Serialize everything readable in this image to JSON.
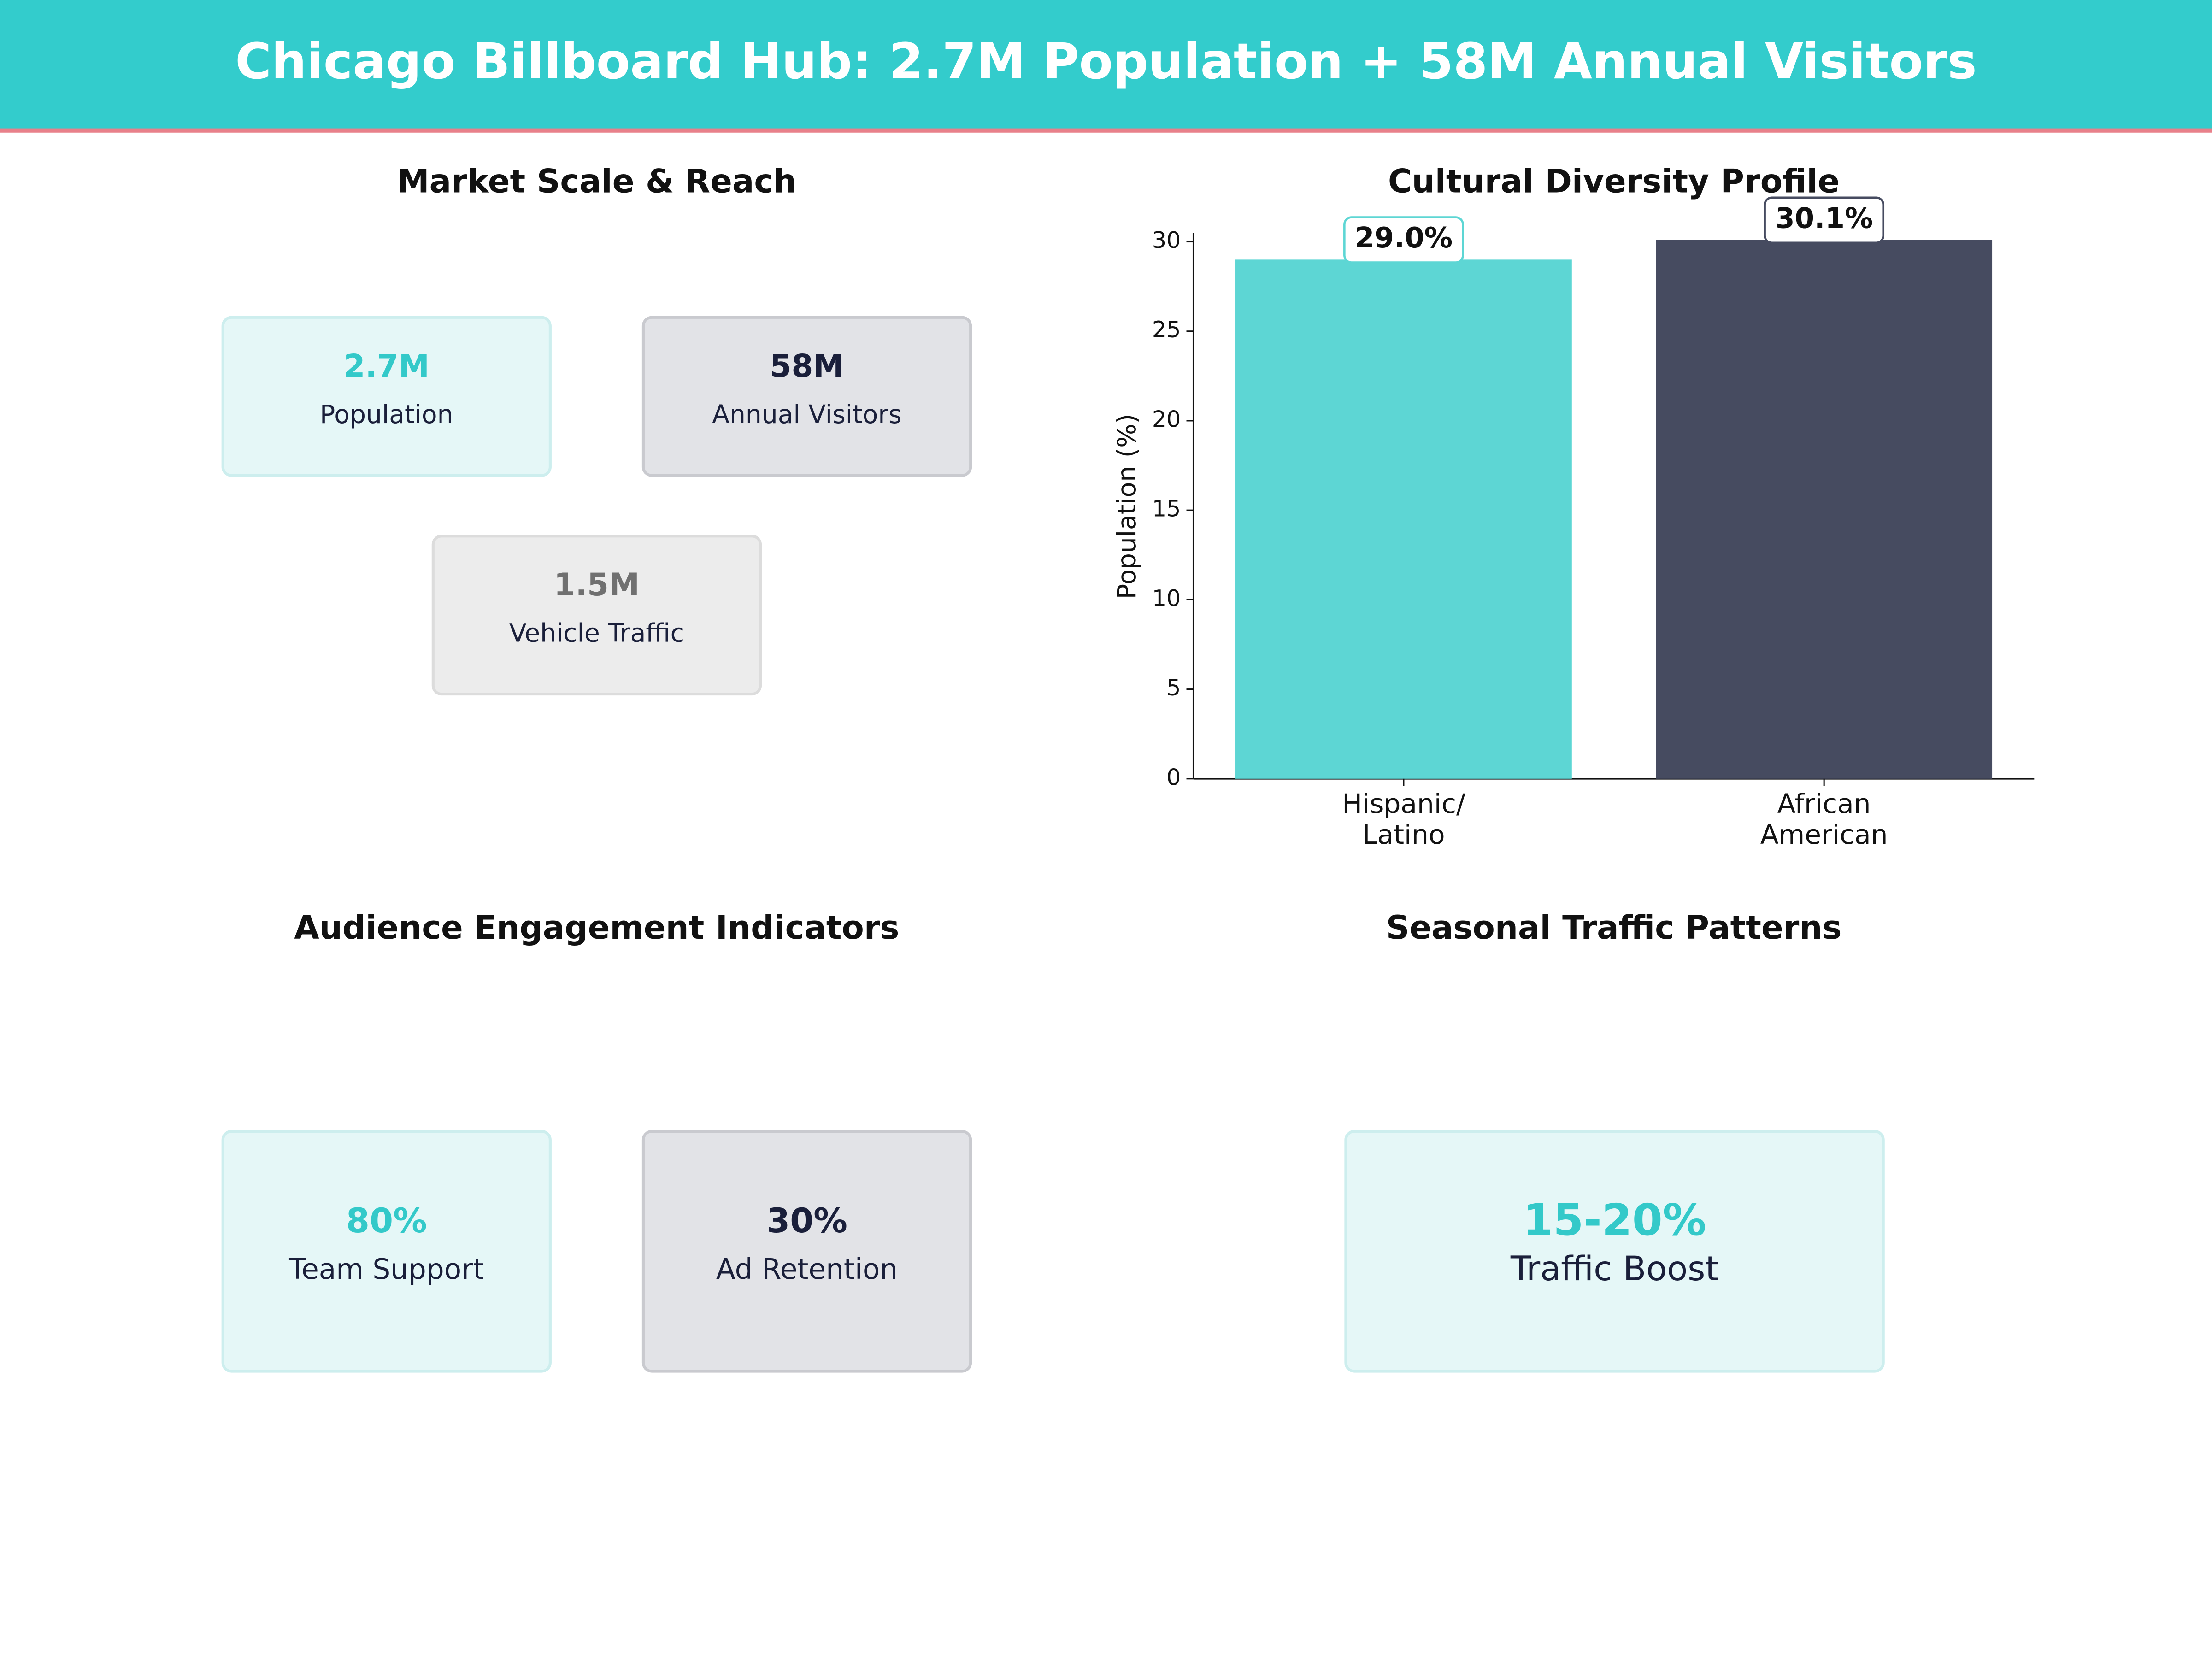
{
  "header": {
    "title": "Chicago Billboard Hub: 2.7M Population + 58M Annual Visitors"
  },
  "market": {
    "title": "Market Scale & Reach",
    "cards": [
      {
        "value": "2.7M",
        "label": "Population"
      },
      {
        "value": "58M",
        "label": "Annual Visitors"
      },
      {
        "value": "1.5M",
        "label": "Vehicle Traffic"
      }
    ]
  },
  "engagement": {
    "title": "Audience Engagement Indicators",
    "cards": [
      {
        "value": "80%",
        "label": "Team Support"
      },
      {
        "value": "30%",
        "label": "Ad Retention"
      }
    ]
  },
  "seasonal": {
    "title": "Seasonal Traffic Patterns",
    "cards": [
      {
        "value": "15-20%",
        "label": "Traffic Boost"
      }
    ]
  },
  "chart_data": {
    "type": "bar",
    "title": "Cultural Diversity Profile",
    "y_label": "Population (%)",
    "categories": [
      "Hispanic/\nLatino",
      "African\nAmerican"
    ],
    "values": [
      29.0,
      30.1
    ],
    "value_labels": [
      "29.0%",
      "30.1%"
    ],
    "colors": [
      "#5dd6d4",
      "#464b60"
    ],
    "ylim": [
      0,
      30.5
    ],
    "yticks": [
      0,
      5,
      10,
      15,
      20,
      25,
      30
    ]
  }
}
